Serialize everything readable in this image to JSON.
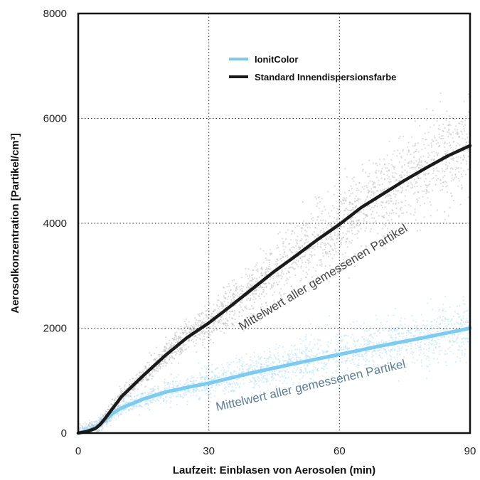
{
  "chart_data": {
    "type": "line",
    "xlabel": "Laufzeit: Einblasen von Aerosolen (min)",
    "ylabel": "Aerosolkonzentration [Partikel/cm³]",
    "xlim": [
      0,
      90
    ],
    "ylim": [
      0,
      8000
    ],
    "xticks": [
      0,
      30,
      60,
      90
    ],
    "yticks": [
      0,
      2000,
      4000,
      6000,
      8000
    ],
    "xtick_labels": [
      "0",
      "30",
      "60",
      "90"
    ],
    "ytick_labels": [
      "0",
      "2000",
      "4000",
      "6000",
      "8000"
    ],
    "grid": "dotted",
    "legend_position": "top-right",
    "series": [
      {
        "name": "IonitColor",
        "color": "#7ecbf0",
        "annotation": "Mittelwert aller gemessenen Partikel",
        "annotation_color": "#5e7f96",
        "x": [
          0,
          2,
          4,
          6,
          8,
          10,
          15,
          20,
          25,
          30,
          40,
          50,
          60,
          70,
          80,
          90
        ],
        "y": [
          0,
          40,
          100,
          230,
          380,
          480,
          650,
          780,
          870,
          950,
          1150,
          1330,
          1500,
          1670,
          1830,
          2000
        ]
      },
      {
        "name": "Standard Innendispersionsfarbe",
        "color": "#1a1a1a",
        "annotation": "Mittelwert aller gemessenen Partikel",
        "annotation_color": "#444444",
        "x": [
          0,
          2,
          4,
          5,
          6,
          8,
          10,
          15,
          20,
          25,
          30,
          35,
          40,
          45,
          50,
          55,
          60,
          65,
          70,
          75,
          80,
          85,
          90
        ],
        "y": [
          0,
          30,
          90,
          160,
          260,
          480,
          700,
          1100,
          1480,
          1820,
          2100,
          2420,
          2750,
          3080,
          3380,
          3690,
          3980,
          4300,
          4560,
          4820,
          5060,
          5290,
          5480
        ]
      }
    ]
  }
}
